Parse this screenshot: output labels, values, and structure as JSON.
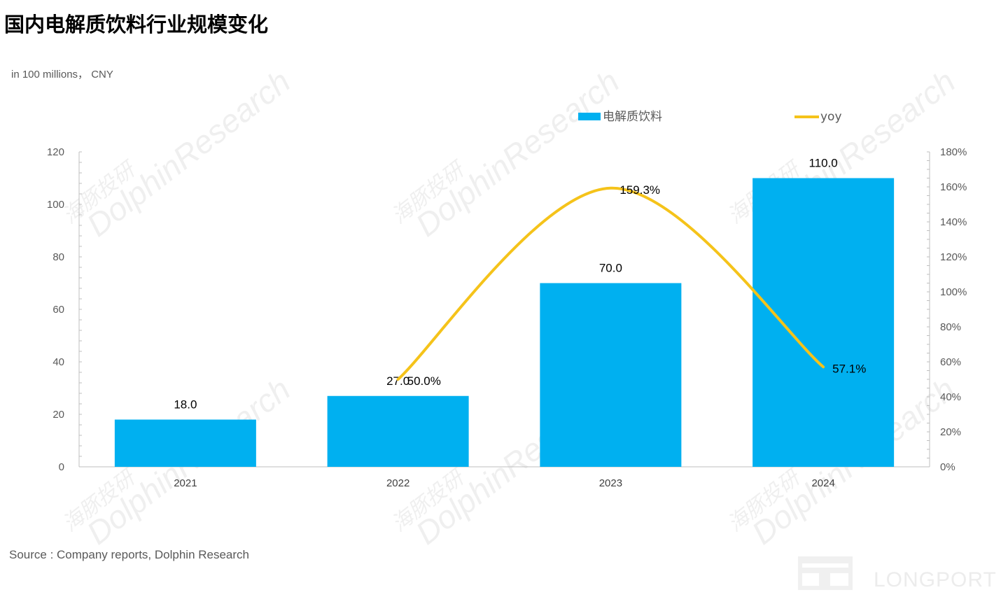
{
  "header": {
    "title": "国内电解质饮料行业规模变化",
    "unit": "in 100 millions， CNY"
  },
  "footer": {
    "source": "Source : Company reports, Dolphin Research",
    "logo_text": "LONGPORT"
  },
  "watermark": {
    "cn": "海豚投研",
    "en": "DolphinResearch"
  },
  "chart_data": {
    "type": "bar",
    "categories": [
      "2021",
      "2022",
      "2023",
      "2024"
    ],
    "series": [
      {
        "name": "电解质饮料",
        "type": "bar",
        "axis": "left",
        "color": "#00B0F0",
        "values": [
          18.0,
          27.0,
          70.0,
          110.0
        ],
        "labels": [
          "18.0",
          "27.0",
          "70.0",
          "110.0"
        ]
      },
      {
        "name": "yoy",
        "type": "line",
        "axis": "right",
        "color": "#F5C31A",
        "values": [
          null,
          50.0,
          159.3,
          57.1
        ],
        "labels": [
          "",
          "50.0%",
          "159.3%",
          "57.1%"
        ]
      }
    ],
    "y_left": {
      "min": 0,
      "max": 120,
      "ticks": [
        "0",
        "20",
        "40",
        "60",
        "80",
        "100",
        "120"
      ]
    },
    "y_right": {
      "min": 0,
      "max": 180,
      "ticks": [
        "0%",
        "20%",
        "40%",
        "60%",
        "80%",
        "100%",
        "120%",
        "140%",
        "160%",
        "180%"
      ]
    },
    "legend_position": "top-right",
    "grid": false
  }
}
